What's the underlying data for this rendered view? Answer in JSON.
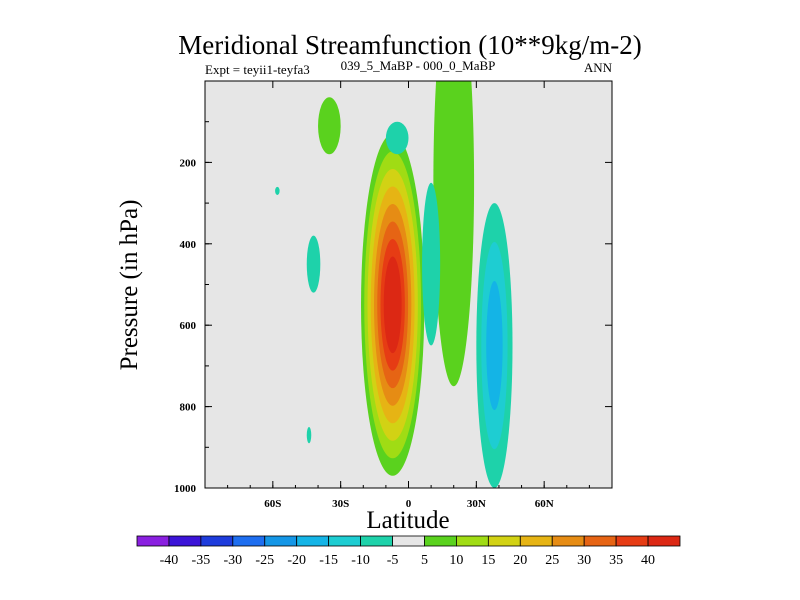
{
  "chart_data": {
    "type": "contour",
    "title": "Meridional Streamfunction (10**9kg/m-2)",
    "subtitle_left": "Expt = teyii1-teyfa3",
    "subtitle_center": "039_5_MaBP - 000_0_MaBP",
    "subtitle_right": "ANN",
    "xlabel": "Latitude",
    "ylabel": "Pressure (in hPa)",
    "xlim": [
      -90,
      90
    ],
    "ylim": [
      0,
      1000
    ],
    "x_ticks": [
      {
        "value": -60,
        "label": "60S"
      },
      {
        "value": -30,
        "label": "30S"
      },
      {
        "value": 0,
        "label": "0"
      },
      {
        "value": 30,
        "label": "30N"
      },
      {
        "value": 60,
        "label": "60N"
      }
    ],
    "y_ticks": [
      {
        "value": 200,
        "label": "200"
      },
      {
        "value": 400,
        "label": "400"
      },
      {
        "value": 600,
        "label": "600"
      },
      {
        "value": 800,
        "label": "800"
      },
      {
        "value": 1000,
        "label": "1000"
      }
    ],
    "missing_color": "#e6e6e6",
    "colorbar": {
      "labels": [
        "-40",
        "-35",
        "-30",
        "-25",
        "-20",
        "-15",
        "-10",
        "-5",
        "5",
        "10",
        "15",
        "20",
        "25",
        "30",
        "35",
        "40"
      ],
      "colors": [
        "#8a20e0",
        "#3c14d8",
        "#1e3cdc",
        "#1e6ef0",
        "#1496e6",
        "#14b4e6",
        "#1ecdd2",
        "#1ed2aa",
        "#e6e6e6",
        "#5ad21e",
        "#a0dc14",
        "#d2d214",
        "#e6b414",
        "#e68c14",
        "#e66414",
        "#e63c14",
        "#dc2814"
      ]
    },
    "features": [
      {
        "name": "nh-upper-cell",
        "value": 5,
        "lat": 20,
        "p": 250,
        "lat_halfwidth": 9,
        "p_halfwidth": 500
      },
      {
        "name": "sh-main-cell",
        "value": 40,
        "lat": -7,
        "p": 550,
        "lat_halfwidth": 14,
        "p_halfwidth": 420
      },
      {
        "name": "nh-negative-cell",
        "value": -15,
        "lat": 38,
        "p": 650,
        "lat_halfwidth": 8,
        "p_halfwidth": 350
      },
      {
        "name": "sh-upper-patch",
        "value": 5,
        "lat": -35,
        "p": 110,
        "lat_halfwidth": 5,
        "p_halfwidth": 70
      },
      {
        "name": "tropical-upper-patch",
        "value": -5,
        "lat": -5,
        "p": 140,
        "lat_halfwidth": 5,
        "p_halfwidth": 40
      },
      {
        "name": "sh-midlat-patch",
        "value": -5,
        "lat": -42,
        "p": 450,
        "lat_halfwidth": 3,
        "p_halfwidth": 70
      },
      {
        "name": "equatorial-negative",
        "value": -5,
        "lat": 10,
        "p": 450,
        "lat_halfwidth": 4,
        "p_halfwidth": 200
      },
      {
        "name": "tiny-patch-1",
        "value": -5,
        "lat": -58,
        "p": 270,
        "lat_halfwidth": 1,
        "p_halfwidth": 10
      },
      {
        "name": "tiny-patch-2",
        "value": -5,
        "lat": -44,
        "p": 870,
        "lat_halfwidth": 1,
        "p_halfwidth": 20
      }
    ]
  }
}
